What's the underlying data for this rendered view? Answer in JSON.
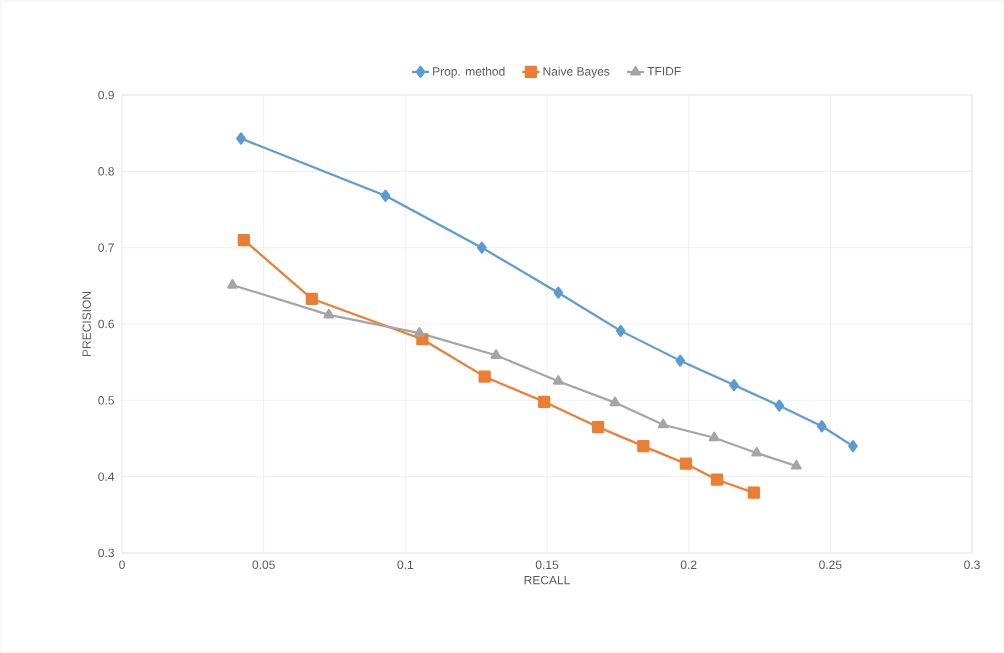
{
  "chart_data": {
    "type": "line",
    "xlabel": "RECALL",
    "ylabel": "PRECISION",
    "xlim": [
      0,
      0.3
    ],
    "xticks": [
      0,
      0.05,
      0.1,
      0.15,
      0.2,
      0.25,
      0.3
    ],
    "ylim": [
      0.3,
      0.9
    ],
    "yticks": [
      0.3,
      0.4,
      0.5,
      0.6,
      0.7,
      0.8,
      0.9
    ],
    "grid": true,
    "legend": "top",
    "line_style": "solid",
    "series": [
      {
        "name": "Prop. method",
        "color": "#5b9bd5",
        "marker": "diamond",
        "x": [
          0.042,
          0.093,
          0.127,
          0.154,
          0.176,
          0.197,
          0.216,
          0.232,
          0.247,
          0.258
        ],
        "values": [
          0.843,
          0.768,
          0.7,
          0.641,
          0.591,
          0.552,
          0.52,
          0.493,
          0.466,
          0.44
        ]
      },
      {
        "name": "Naive Bayes",
        "color": "#ed7d31",
        "marker": "square",
        "x": [
          0.043,
          0.067,
          0.106,
          0.128,
          0.149,
          0.168,
          0.184,
          0.199,
          0.21,
          0.223
        ],
        "values": [
          0.71,
          0.633,
          0.58,
          0.531,
          0.498,
          0.465,
          0.44,
          0.417,
          0.396,
          0.379
        ]
      },
      {
        "name": "TFIDF",
        "color": "#a5a5a5",
        "marker": "triangle",
        "x": [
          0.039,
          0.073,
          0.105,
          0.132,
          0.154,
          0.174,
          0.191,
          0.209,
          0.224,
          0.238
        ],
        "values": [
          0.651,
          0.612,
          0.588,
          0.559,
          0.525,
          0.497,
          0.468,
          0.451,
          0.431,
          0.414
        ]
      }
    ]
  }
}
